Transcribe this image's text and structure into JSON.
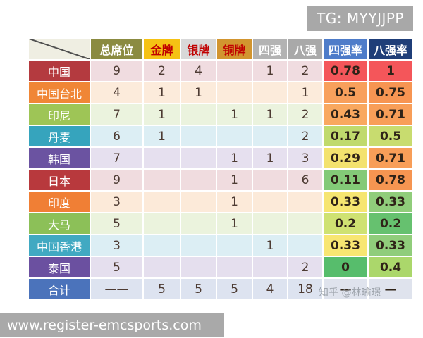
{
  "badge": {
    "label": "TG: MYYJJPP",
    "bg": "#a8a8a8",
    "fg": "#ffffff"
  },
  "watermark": {
    "label": "知乎 @林瑜璟"
  },
  "footer": {
    "url": "www.register-emcsports.com",
    "bg": "#a9a9a9",
    "fg": "#ffffff"
  },
  "chart_data": {
    "type": "table",
    "columns": [
      "总席位",
      "金牌",
      "银牌",
      "铜牌",
      "四强",
      "八强",
      "四强率",
      "八强率"
    ],
    "rows": [
      {
        "label": "中国",
        "cells": [
          "9",
          "2",
          "4",
          "",
          "1",
          "2",
          "0.78",
          "1"
        ]
      },
      {
        "label": "中国台北",
        "cells": [
          "4",
          "1",
          "1",
          "",
          "",
          "1",
          "0.5",
          "0.75"
        ]
      },
      {
        "label": "印尼",
        "cells": [
          "7",
          "1",
          "",
          "1",
          "1",
          "2",
          "0.43",
          "0.71"
        ]
      },
      {
        "label": "丹麦",
        "cells": [
          "6",
          "1",
          "",
          "",
          "",
          "2",
          "0.17",
          "0.5"
        ]
      },
      {
        "label": "韩国",
        "cells": [
          "7",
          "",
          "",
          "1",
          "1",
          "3",
          "0.29",
          "0.71"
        ]
      },
      {
        "label": "日本",
        "cells": [
          "9",
          "",
          "",
          "1",
          "",
          "6",
          "0.11",
          "0.78"
        ]
      },
      {
        "label": "印度",
        "cells": [
          "3",
          "",
          "",
          "1",
          "",
          "",
          "0.33",
          "0.33"
        ]
      },
      {
        "label": "大马",
        "cells": [
          "5",
          "",
          "",
          "1",
          "",
          "",
          "0.2",
          "0.2"
        ]
      },
      {
        "label": "中国香港",
        "cells": [
          "3",
          "",
          "",
          "",
          "1",
          "",
          "0.33",
          "0.33"
        ]
      },
      {
        "label": "泰国",
        "cells": [
          "5",
          "",
          "",
          "",
          "",
          "2",
          "0",
          "0.4"
        ]
      },
      {
        "label": "合计",
        "cells": [
          "——",
          "5",
          "5",
          "5",
          "4",
          "18",
          "—",
          "—"
        ]
      }
    ]
  },
  "styles": {
    "corner_bg": "#efeee2",
    "header_bg": [
      "#8b8b41",
      "#f5c214",
      "#d8d8d8",
      "#d2952f",
      "#b3b3b3",
      "#a9a9a9",
      "#4e7cc9",
      "#1f3e78"
    ],
    "header_fg": [
      "#ffffff",
      "#c00000",
      "#c00000",
      "#c00000",
      "#ffffff",
      "#ffffff",
      "#ffffff",
      "#ffffff"
    ],
    "row_label_bg": [
      "#b43a3f",
      "#f08636",
      "#9ec556",
      "#36a4bd",
      "#6b53a1",
      "#b8393d",
      "#f07f35",
      "#8cc058",
      "#41a9c2",
      "#6b50a0",
      "#4b73bb"
    ],
    "row_cell_bg": [
      "#f0dce0",
      "#fcebdb",
      "#ebf3de",
      "#dceef4",
      "#e6e0ef",
      "#f0dcdf",
      "#fcead9",
      "#ebf3dd",
      "#dceef4",
      "#e5dfee",
      "#dde3f0"
    ],
    "rate_bg": [
      [
        "#f4565a",
        "#f4565a"
      ],
      [
        "#f8a05c",
        "#f79552"
      ],
      [
        "#f9a85f",
        "#f89e58"
      ],
      [
        "#c0da6d",
        "#c8dc6f"
      ],
      [
        "#f3e26e",
        "#f89e58"
      ],
      [
        "#83ca77",
        "#f69551"
      ],
      [
        "#f6e571",
        "#90cd7b"
      ],
      [
        "#cfe272",
        "#66c16f"
      ],
      [
        "#f8e672",
        "#90cd7b"
      ],
      [
        "#57bd6c",
        "#abd76b"
      ],
      [
        "#dfe3ed",
        "#dfe3ed"
      ]
    ],
    "value_fg": "#4d3b33",
    "rate_fg": "#2f2318"
  }
}
